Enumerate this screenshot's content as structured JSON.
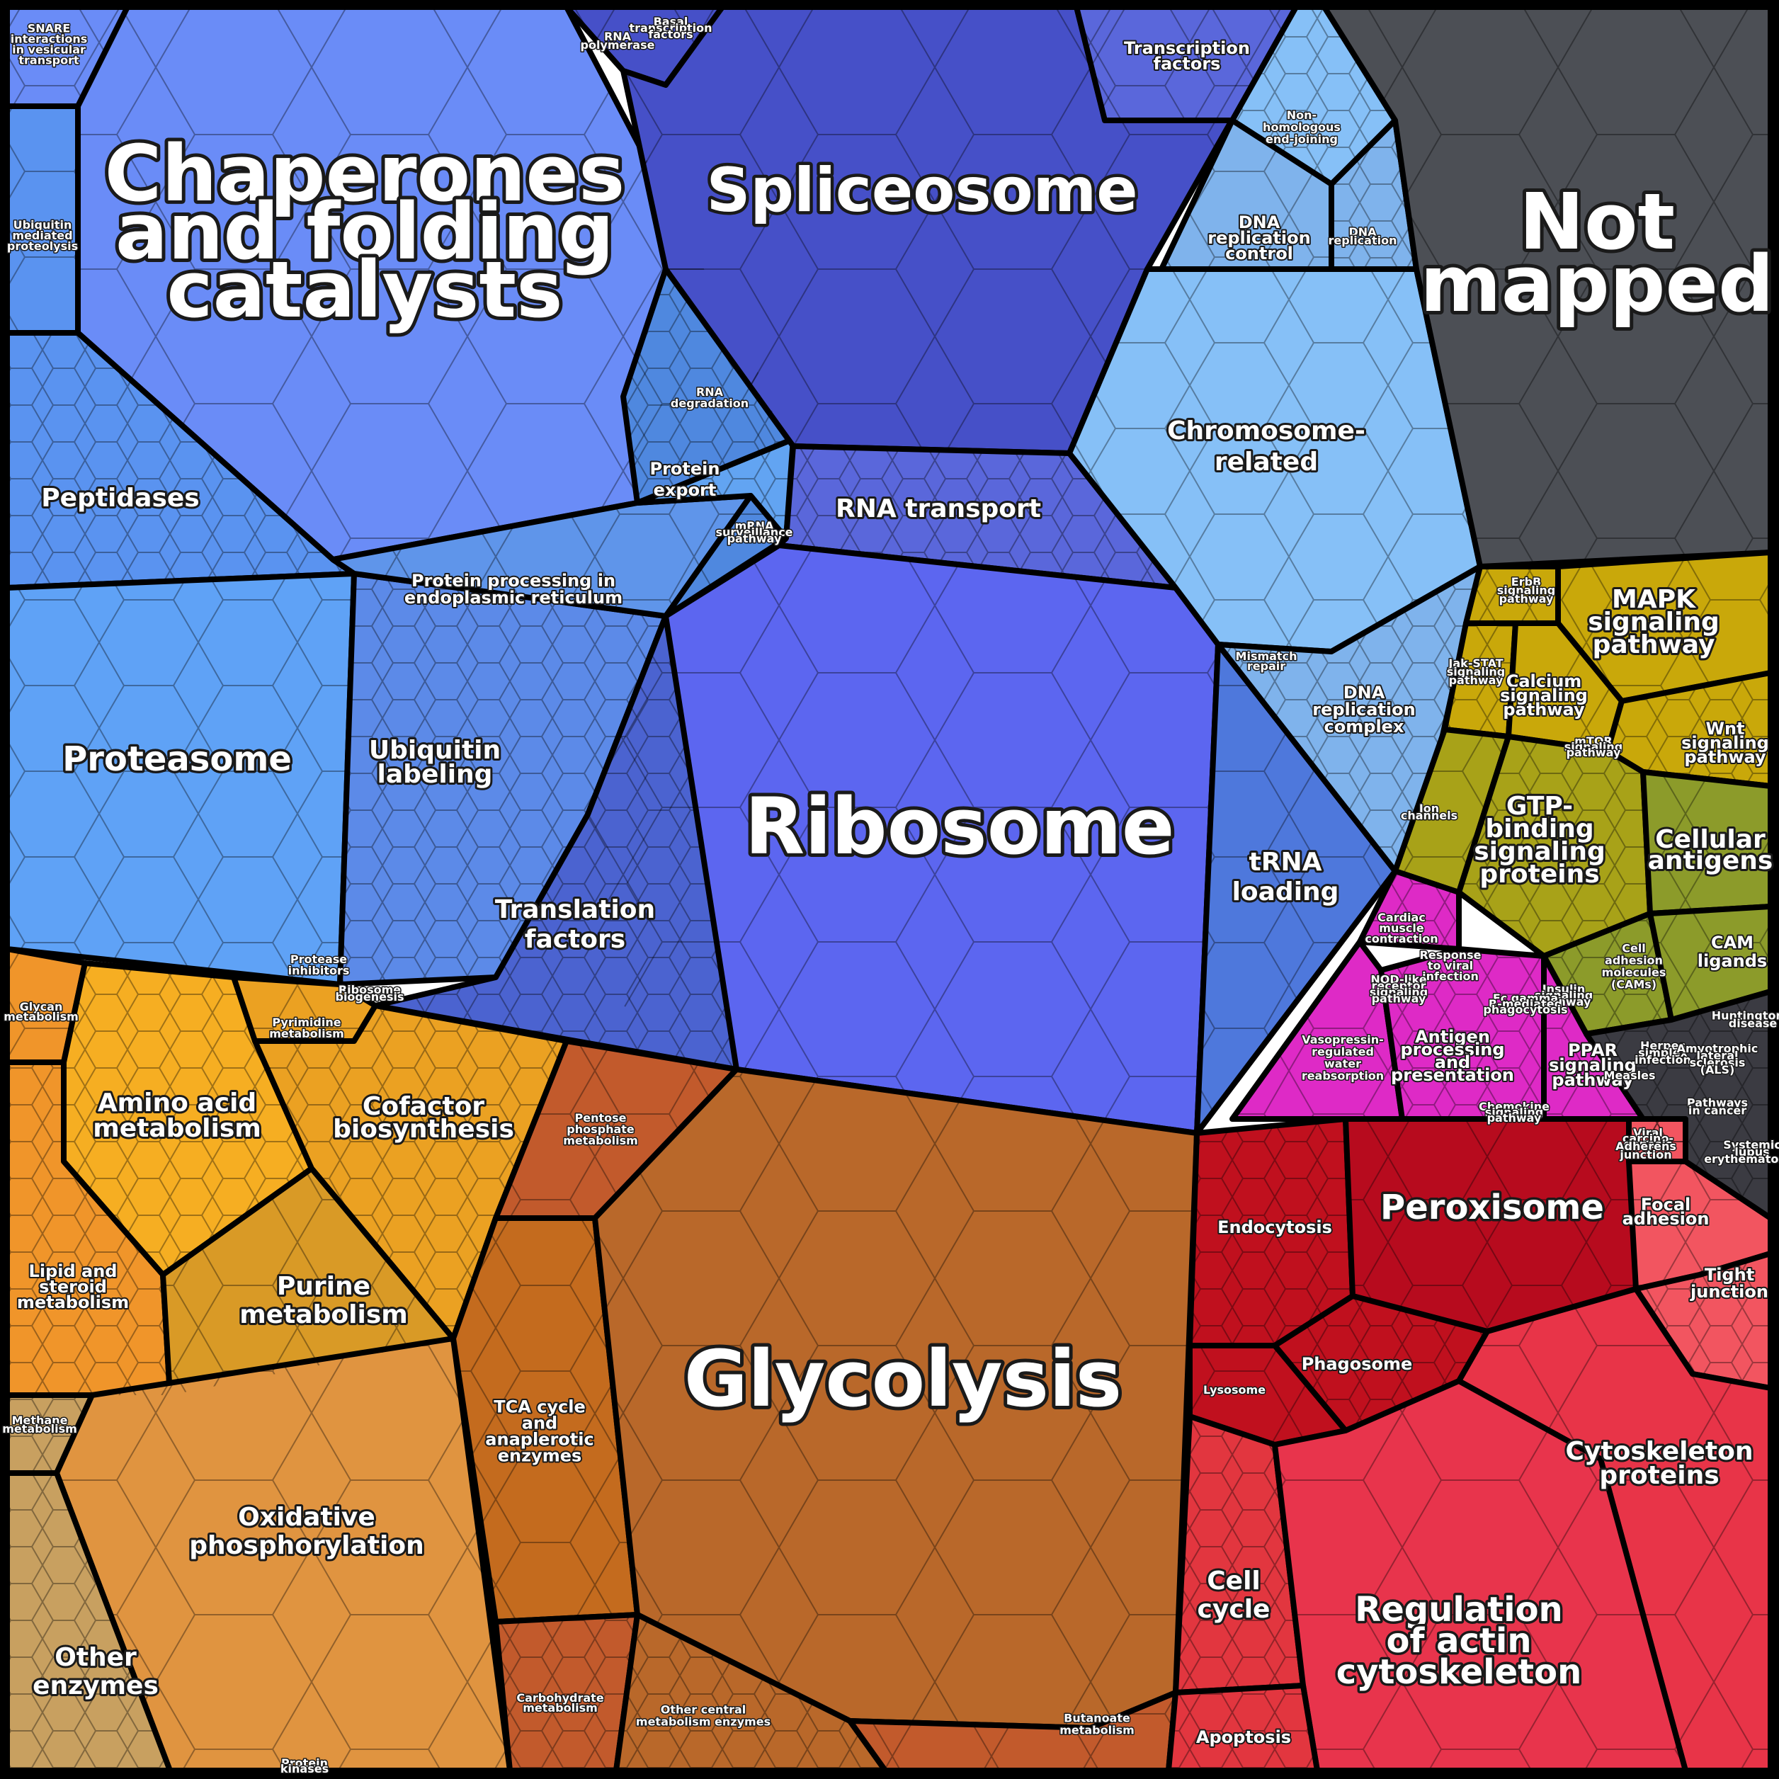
{
  "colors": {
    "chaperones": "#6a8cf7",
    "peptidases": "#5a93f0",
    "proteasome": "#5fa2f6",
    "ubiquitin": "#5c8ae8",
    "protein_processing": "#5f95ea",
    "protein_export": "#62a4f2",
    "rna_degradation": "#4f88df",
    "spliceosome": "#4650c8",
    "rna_transport": "#5a67db",
    "ribosome": "#5c66f0",
    "translation": "#4b63d0",
    "trna": "#4e78dc",
    "chromosome": "#86c0f7",
    "dna_rep": "#7fb3ec",
    "not_mapped": "#4c4f55",
    "signaling": "#c9a80a",
    "gtp": "#a8a218",
    "cellular_antigens": "#8c9b2a",
    "magenta": "#de2ac6",
    "dark_misc": "#3b3b42",
    "amino": "#f6ae22",
    "cofactor": "#eba122",
    "lipid": "#f0952a",
    "purine": "#d99a26",
    "oxphos": "#e09440",
    "other_enzymes": "#c8a060",
    "glycolysis": "#b9682a",
    "tca": "#c46b1e",
    "pentose": "#c25a2c",
    "endocytosis": "#c0101e",
    "peroxisome": "#b70b1e",
    "focal": "#f25560",
    "cytoskeleton": "#e83448",
    "actin": "#e8344c",
    "cell_cycle": "#e2363f"
  },
  "labels": {
    "chaperones": [
      "Chaperones",
      "and folding",
      "catalysts"
    ],
    "spliceosome": [
      "Spliceosome"
    ],
    "not_mapped": [
      "Not",
      "mapped"
    ],
    "ribosome": [
      "Ribosome"
    ],
    "glycolysis": [
      "Glycolysis"
    ],
    "peptidases": [
      "Peptidases"
    ],
    "proteasome": [
      "Proteasome"
    ],
    "ubiquitin": [
      "Ubiquitin",
      "labeling"
    ],
    "protein_processing": [
      "Protein processing in",
      "endoplasmic reticulum"
    ],
    "protein_export": [
      "Protein",
      "export"
    ],
    "rna_degradation": [
      "RNA",
      "degradation"
    ],
    "rna_transport": [
      "RNA transport"
    ],
    "transcription_factors": [
      "Transcription",
      "factors"
    ],
    "chromosome": [
      "Chromosome-",
      "related"
    ],
    "nhej": [
      "Non-",
      "homologous",
      "end-joining"
    ],
    "dna_rep_control": [
      "DNA",
      "replication",
      "control"
    ],
    "dna_replication": [
      "DNA",
      "replication"
    ],
    "dna_rep_complex": [
      "DNA",
      "replication",
      "complex"
    ],
    "mismatch": [
      "Mismatch",
      "repair"
    ],
    "translation_factors": [
      "Translation",
      "factors"
    ],
    "trna": [
      "tRNA",
      "loading"
    ],
    "snare": [
      "SNARE",
      "interactions",
      "in vesicular",
      "transport"
    ],
    "ubiquitin_proteolysis": [
      "Ubiquitin",
      "mediated",
      "proteolysis"
    ],
    "protease_inhibitors": [
      "Protease",
      "inhibitors"
    ],
    "ribosome_biogenesis": [
      "Ribosome",
      "biogenesis"
    ],
    "mrna_surveillance": [
      "mRNA",
      "surveillance",
      "pathway"
    ],
    "rna_polymerase": [
      "RNA",
      "polymerase"
    ],
    "basal_tf": [
      "Basal",
      "transcription",
      "factors"
    ],
    "mapk": [
      "MAPK",
      "signaling",
      "pathway"
    ],
    "erbb": [
      "ErbB",
      "signaling",
      "pathway"
    ],
    "calcium": [
      "Calcium",
      "signaling",
      "pathway"
    ],
    "jak_stat": [
      "Jak-STAT",
      "signaling",
      "pathway"
    ],
    "wnt": [
      "Wnt",
      "signaling",
      "pathway"
    ],
    "mtor": [
      "mTOR",
      "signaling",
      "pathway"
    ],
    "gtp": [
      "GTP-",
      "binding",
      "signaling",
      "proteins"
    ],
    "cellular_antigens": [
      "Cellular",
      "antigens"
    ],
    "cam_ligands": [
      "CAM",
      "ligands"
    ],
    "cams": [
      "Cell",
      "adhesion",
      "molecules",
      "(CAMs)"
    ],
    "ion_channels": [
      "Ion",
      "channels"
    ],
    "cardiac": [
      "Cardiac",
      "muscle",
      "contraction"
    ],
    "viral_infection": [
      "Response",
      "to viral",
      "infection"
    ],
    "nod": [
      "NOD-like",
      "receptor",
      "signaling",
      "pathway"
    ],
    "antigen": [
      "Antigen",
      "processing",
      "and",
      "presentation"
    ],
    "vasopressin": [
      "Vasopressin-",
      "regulated",
      "water",
      "reabsorption"
    ],
    "ppar": [
      "PPAR",
      "signaling",
      "pathway"
    ],
    "insulin": [
      "Insulin",
      "signaling",
      "pathway"
    ],
    "fc_gamma": [
      "Fc gamma",
      "R-mediated",
      "phagocytosis"
    ],
    "chemokine": [
      "Chemokine",
      "signaling",
      "pathway"
    ],
    "huntington": [
      "Huntington's",
      "disease"
    ],
    "herpes": [
      "Herpes",
      "simplex",
      "infection"
    ],
    "als": [
      "Amyotrophic",
      "lateral",
      "sclerosis",
      "(ALS)"
    ],
    "measles": [
      "Measles"
    ],
    "pathways_cancer": [
      "Pathways",
      "in cancer"
    ],
    "lupus": [
      "Systemic",
      "lupus",
      "erythematosus"
    ],
    "viral_carcinogenesis": [
      "Viral",
      "carcino-",
      "genesis"
    ],
    "adherens": [
      "Adherens",
      "junction"
    ],
    "focal": [
      "Focal",
      "adhesion"
    ],
    "tight": [
      "Tight",
      "junction"
    ],
    "endocytosis": [
      "Endocytosis"
    ],
    "peroxisome": [
      "Peroxisome"
    ],
    "phagosome": [
      "Phagosome"
    ],
    "lysosome": [
      "Lysosome"
    ],
    "cytoskeleton": [
      "Cytoskeleton",
      "proteins"
    ],
    "cell_cycle": [
      "Cell",
      "cycle"
    ],
    "actin": [
      "Regulation",
      "of actin",
      "cytoskeleton"
    ],
    "apoptosis": [
      "Apoptosis"
    ],
    "glycan": [
      "Glycan",
      "metabolism"
    ],
    "pyrimidine": [
      "Pyrimidine",
      "metabolism"
    ],
    "amino": [
      "Amino acid",
      "metabolism"
    ],
    "cofactor": [
      "Cofactor",
      "biosynthesis"
    ],
    "pentose": [
      "Pentose",
      "phosphate",
      "metabolism"
    ],
    "lipid": [
      "Lipid and",
      "steroid",
      "metabolism"
    ],
    "purine": [
      "Purine",
      "metabolism"
    ],
    "methane": [
      "Methane",
      "metabolism"
    ],
    "oxphos": [
      "Oxidative",
      "phosphorylation"
    ],
    "tca": [
      "TCA cycle",
      "and",
      "anaplerotic",
      "enzymes"
    ],
    "other_enzymes": [
      "Other",
      "enzymes"
    ],
    "carbohydrate": [
      "Carbohydrate",
      "metabolism"
    ],
    "other_central": [
      "Other central",
      "metabolism enzymes"
    ],
    "butanoate": [
      "Butanoate",
      "metabolism"
    ],
    "protein_kinases": [
      "Protein",
      "kinases"
    ]
  }
}
